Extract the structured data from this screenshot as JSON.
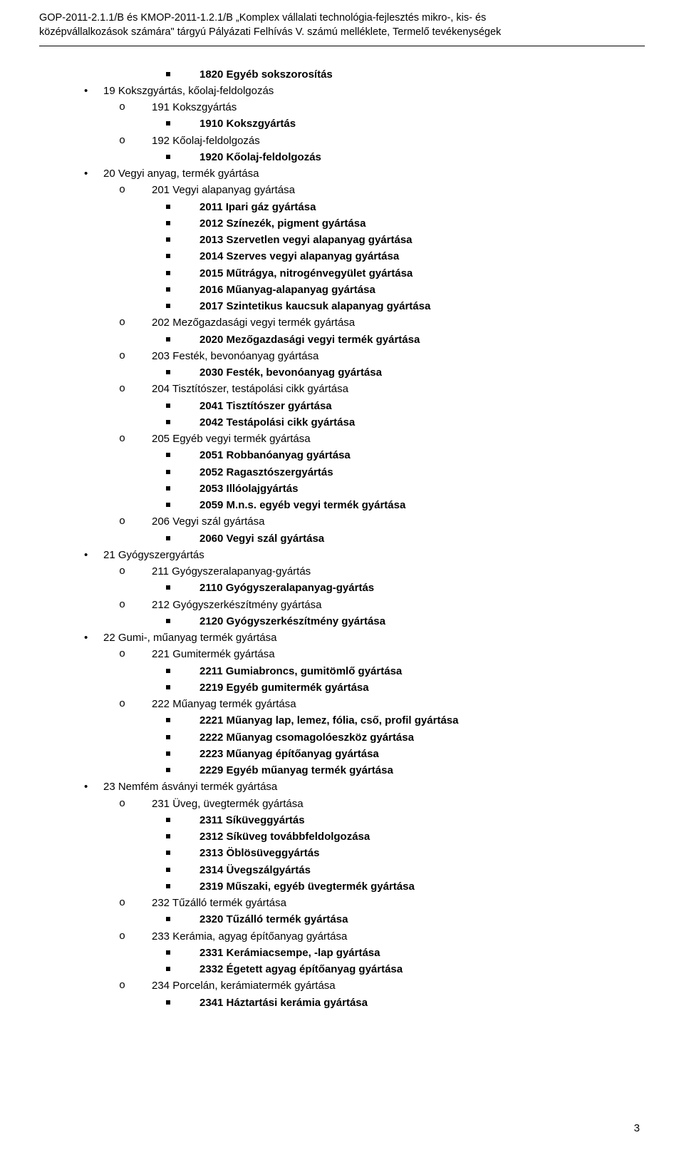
{
  "header_line1": "GOP-2011-2.1.1/B és KMOP-2011-1.2.1/B „Komplex vállalati technológia-fejlesztés mikro-, kis- és",
  "header_line2": "középvállalkozások számára\" tárgyú Pályázati Felhívás V. számú melléklete, Termelő tevékenységek",
  "page_number": "3",
  "outline": [
    {
      "label": "",
      "children": [
        {
          "label": "",
          "children": [
            {
              "label": "1820 Egyéb sokszorosítás",
              "bold": true
            }
          ]
        }
      ]
    },
    {
      "label": "19 Kokszgyártás, kőolaj-feldolgozás",
      "children": [
        {
          "label": "191 Kokszgyártás",
          "children": [
            {
              "label": "1910 Kokszgyártás",
              "bold": true
            }
          ]
        },
        {
          "label": "192 Kőolaj-feldolgozás",
          "children": [
            {
              "label": "1920 Kőolaj-feldolgozás",
              "bold": true
            }
          ]
        }
      ]
    },
    {
      "label": "20 Vegyi anyag, termék gyártása",
      "children": [
        {
          "label": "201 Vegyi alapanyag gyártása",
          "children": [
            {
              "label": "2011 Ipari gáz gyártása",
              "bold": true
            },
            {
              "label": "2012 Színezék, pigment gyártása",
              "bold": true
            },
            {
              "label": "2013 Szervetlen vegyi alapanyag gyártása",
              "bold": true
            },
            {
              "label": "2014 Szerves vegyi alapanyag gyártása",
              "bold": true
            },
            {
              "label": "2015 Műtrágya, nitrogénvegyület gyártása",
              "bold": true
            },
            {
              "label": "2016 Műanyag-alapanyag gyártása",
              "bold": true
            },
            {
              "label": "2017 Szintetikus kaucsuk alapanyag gyártása",
              "bold": true
            }
          ]
        },
        {
          "label": "202 Mezőgazdasági vegyi termék gyártása",
          "children": [
            {
              "label": "2020 Mezőgazdasági vegyi termék gyártása",
              "bold": true
            }
          ]
        },
        {
          "label": "203 Festék, bevonóanyag gyártása",
          "children": [
            {
              "label": "2030 Festék, bevonóanyag gyártása",
              "bold": true
            }
          ]
        },
        {
          "label": "204 Tisztítószer, testápolási cikk gyártása",
          "children": [
            {
              "label": "2041 Tisztítószer gyártása",
              "bold": true
            },
            {
              "label": "2042 Testápolási cikk gyártása",
              "bold": true
            }
          ]
        },
        {
          "label": "205 Egyéb vegyi termék gyártása",
          "children": [
            {
              "label": "2051 Robbanóanyag gyártása",
              "bold": true
            },
            {
              "label": "2052 Ragasztószergyártás",
              "bold": true
            },
            {
              "label": "2053 Illóolajgyártás",
              "bold": true
            },
            {
              "label": "2059 M.n.s. egyéb vegyi termék gyártása",
              "bold": true
            }
          ]
        },
        {
          "label": "206 Vegyi szál gyártása",
          "children": [
            {
              "label": "2060 Vegyi szál gyártása",
              "bold": true
            }
          ]
        }
      ]
    },
    {
      "label": "21 Gyógyszergyártás",
      "children": [
        {
          "label": "211 Gyógyszeralapanyag-gyártás",
          "children": [
            {
              "label": "2110 Gyógyszeralapanyag-gyártás",
              "bold": true
            }
          ]
        },
        {
          "label": "212 Gyógyszerkészítmény gyártása",
          "children": [
            {
              "label": "2120 Gyógyszerkészítmény gyártása",
              "bold": true
            }
          ]
        }
      ]
    },
    {
      "label": "22 Gumi-, műanyag termék gyártása",
      "children": [
        {
          "label": "221 Gumitermék gyártása",
          "children": [
            {
              "label": "2211 Gumiabroncs, gumitömlő gyártása",
              "bold": true
            },
            {
              "label": "2219 Egyéb gumitermék gyártása",
              "bold": true
            }
          ]
        },
        {
          "label": "222 Műanyag termék gyártása",
          "children": [
            {
              "label": "2221 Műanyag lap, lemez, fólia, cső, profil gyártása",
              "bold": true
            },
            {
              "label": "2222 Műanyag csomagolóeszköz gyártása",
              "bold": true
            },
            {
              "label": "2223 Műanyag építőanyag gyártása",
              "bold": true
            },
            {
              "label": "2229 Egyéb műanyag termék gyártása",
              "bold": true
            }
          ]
        }
      ]
    },
    {
      "label": "23 Nemfém ásványi termék gyártása",
      "children": [
        {
          "label": "231 Üveg, üvegtermék gyártása",
          "children": [
            {
              "label": "2311 Síküveggyártás",
              "bold": true
            },
            {
              "label": "2312 Síküveg továbbfeldolgozása",
              "bold": true
            },
            {
              "label": "2313 Öblösüveggyártás",
              "bold": true
            },
            {
              "label": "2314 Üvegszálgyártás",
              "bold": true
            },
            {
              "label": "2319 Műszaki, egyéb üvegtermék gyártása",
              "bold": true
            }
          ]
        },
        {
          "label": "232 Tűzálló termék gyártása",
          "children": [
            {
              "label": "2320 Tűzálló termék gyártása",
              "bold": true
            }
          ]
        },
        {
          "label": "233 Kerámia, agyag építőanyag gyártása",
          "children": [
            {
              "label": "2331 Kerámiacsempe, -lap gyártása",
              "bold": true
            },
            {
              "label": "2332 Égetett agyag építőanyag gyártása",
              "bold": true
            }
          ]
        },
        {
          "label": "234 Porcelán, kerámiatermék gyártása",
          "children": [
            {
              "label": "2341 Háztartási kerámia gyártása",
              "bold": true
            }
          ]
        }
      ]
    }
  ]
}
